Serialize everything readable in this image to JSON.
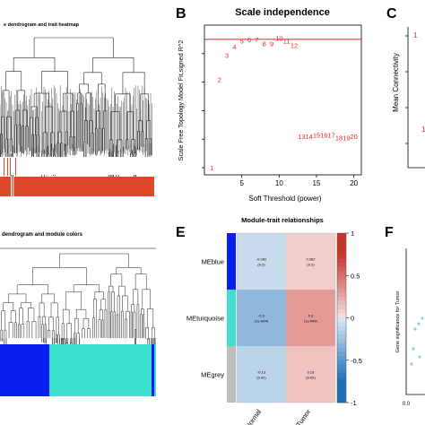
{
  "panels": {
    "a": {
      "title": "e dendrogram and trait heatmap"
    },
    "b": {
      "letter": "B",
      "title": "Scale independence"
    },
    "c": {
      "letter": "C"
    },
    "d": {
      "title": "dendrogram and module colors"
    },
    "e": {
      "letter": "E",
      "title": "Module-trait relationships"
    },
    "f": {
      "letter": "F"
    }
  },
  "colors": {
    "blue": "#0a1ef0",
    "turquoise": "#40e0d0",
    "grey": "#bebebe",
    "red": "#e0482c",
    "heat_blue": "#1f6fb8",
    "heat_red": "#c8352e"
  },
  "chart_data": [
    {
      "type": "scatter",
      "panel": "B",
      "title": "Scale independence",
      "xlabel": "Soft Threshold (power)",
      "ylabel": "Scale Free Topology Model Fit,signed R^2",
      "xlim": [
        0,
        21
      ],
      "ylim": [
        -0.05,
        1.0
      ],
      "x_ticks": [
        "5",
        "10",
        "15",
        "20"
      ],
      "cutoff_line": 0.9,
      "points": [
        {
          "x": 1,
          "y": 0.0,
          "label": "1"
        },
        {
          "x": 2,
          "y": 0.62,
          "label": "2"
        },
        {
          "x": 3,
          "y": 0.79,
          "label": "3"
        },
        {
          "x": 4,
          "y": 0.85,
          "label": "4"
        },
        {
          "x": 5,
          "y": 0.89,
          "label": "5"
        },
        {
          "x": 6,
          "y": 0.9,
          "label": "6"
        },
        {
          "x": 7,
          "y": 0.9,
          "label": "7"
        },
        {
          "x": 8,
          "y": 0.87,
          "label": "8"
        },
        {
          "x": 9,
          "y": 0.87,
          "label": "9"
        },
        {
          "x": 10,
          "y": 0.91,
          "label": "10"
        },
        {
          "x": 11,
          "y": 0.89,
          "label": "11"
        },
        {
          "x": 12,
          "y": 0.86,
          "label": "12"
        },
        {
          "x": 13,
          "y": 0.22,
          "label": "13"
        },
        {
          "x": 14,
          "y": 0.22,
          "label": "14"
        },
        {
          "x": 15,
          "y": 0.23,
          "label": "15"
        },
        {
          "x": 16,
          "y": 0.23,
          "label": "16"
        },
        {
          "x": 17,
          "y": 0.23,
          "label": "17"
        },
        {
          "x": 18,
          "y": 0.21,
          "label": "18"
        },
        {
          "x": 19,
          "y": 0.21,
          "label": "19"
        },
        {
          "x": 20,
          "y": 0.22,
          "label": "20"
        }
      ]
    },
    {
      "type": "scatter",
      "panel": "C",
      "ylabel": "Mean Connectivity",
      "points_visible": [
        "1"
      ]
    },
    {
      "type": "heatmap",
      "panel": "E",
      "title": "Module-trait relationships",
      "rows": [
        "MEblue",
        "MEturquoise",
        "MEgrey"
      ],
      "row_colors": [
        "#0a1ef0",
        "#40e0d0",
        "#bebebe"
      ],
      "columns": [
        "Normal",
        "Tumor"
      ],
      "values": [
        [
          -0.082,
          0.082
        ],
        [
          -0.3,
          0.3
        ],
        [
          -0.13,
          0.13
        ]
      ],
      "cell_text": [
        [
          [
            "-0.082",
            "(0.2)"
          ],
          [
            "0.082",
            "(0.2)"
          ]
        ],
        [
          [
            "-0.3",
            "(1e-###)"
          ],
          [
            "0.3",
            "(1e-###)"
          ]
        ],
        [
          [
            "-0.13",
            "(0.02)"
          ],
          [
            "0.13",
            "(0.02)"
          ]
        ]
      ],
      "colorbar_ticks": [
        "1",
        "0.5",
        "0",
        "-0.5",
        "-1"
      ],
      "vlim": [
        -1,
        1
      ]
    },
    {
      "type": "scatter",
      "panel": "F",
      "ylabel": "Gene significance for Tumor",
      "x_ticks": [
        "0.0"
      ]
    }
  ]
}
